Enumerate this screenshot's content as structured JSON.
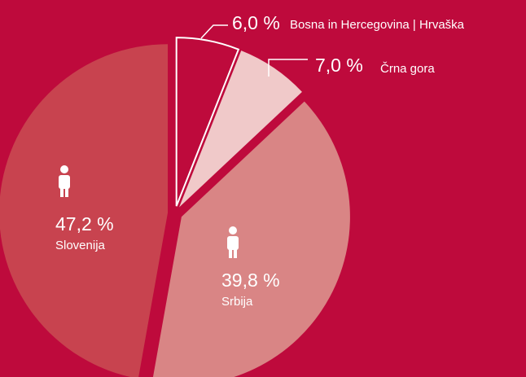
{
  "chart_data": {
    "type": "pie",
    "categories": [
      "Bosna in Hercegovina | Hrvaška",
      "Črna gora",
      "Srbija",
      "Slovenija"
    ],
    "values": [
      6.0,
      7.0,
      39.8,
      47.2
    ],
    "value_labels": [
      "6,0 %",
      "7,0 %",
      "39,8 %",
      "47,2 %"
    ],
    "colors": [
      "#be0a3c",
      "#f0c9c9",
      "#d98585",
      "#c8434f"
    ],
    "edgecolors": [
      "#ffffff",
      null,
      null,
      null
    ],
    "background": "#be0a3c"
  }
}
